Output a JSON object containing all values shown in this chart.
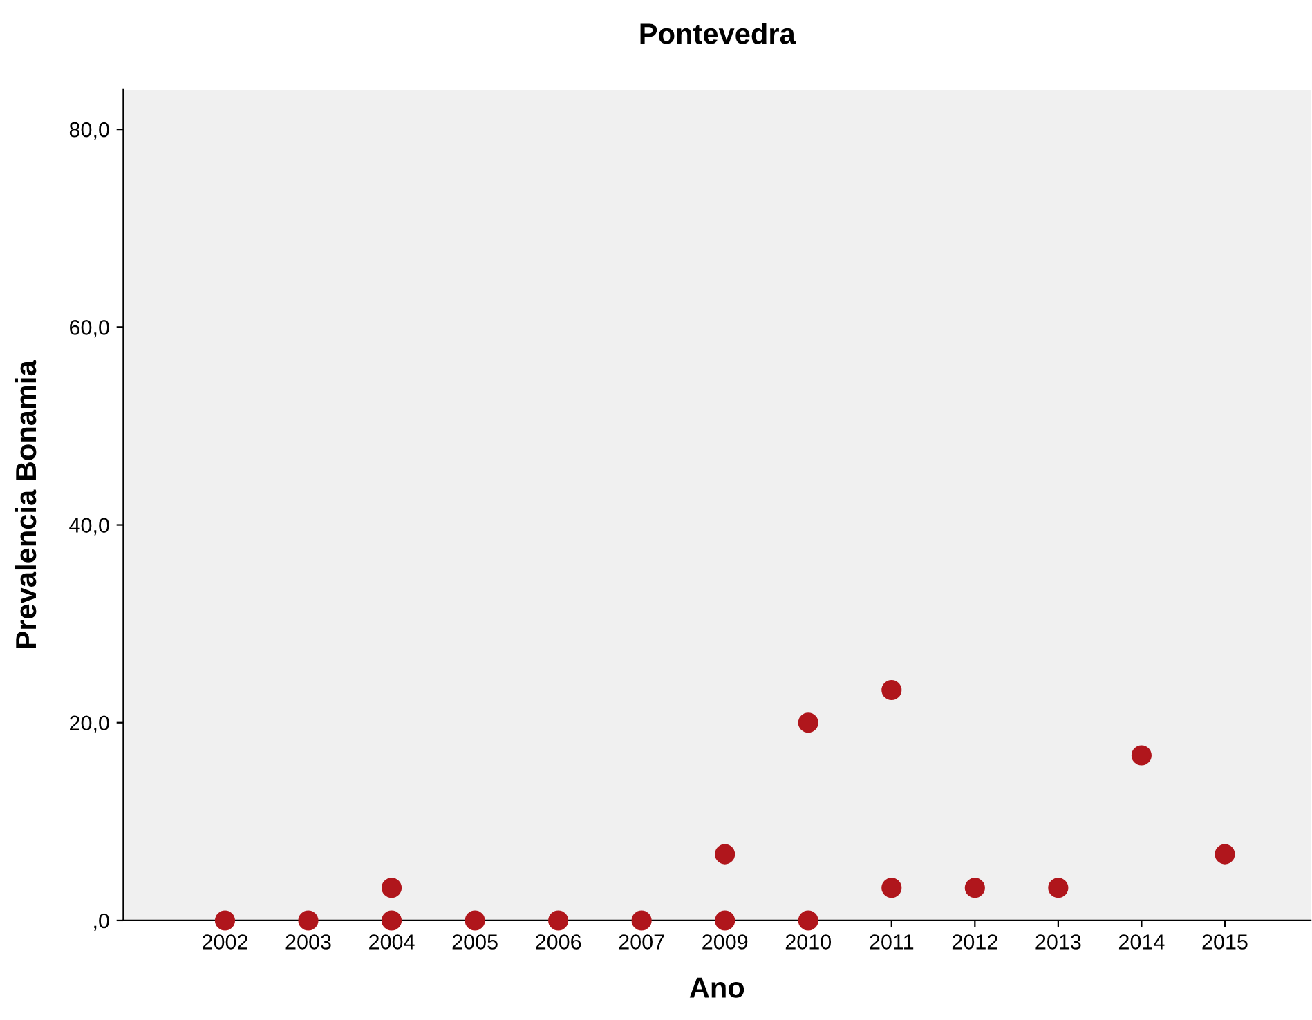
{
  "chart_data": {
    "type": "scatter",
    "title": "Pontevedra",
    "xlabel": "Ano",
    "ylabel": "Prevalencia Bonamia",
    "categories": [
      "2002",
      "2003",
      "2004",
      "2005",
      "2006",
      "2007",
      "2009",
      "2010",
      "2011",
      "2012",
      "2013",
      "2014",
      "2015"
    ],
    "series": [
      {
        "color": "#b0161c",
        "values": [
          0,
          0,
          0,
          0,
          0,
          0,
          0,
          0,
          3.3,
          3.3,
          3.3,
          16.7,
          6.7
        ]
      },
      {
        "color": "#b0161c",
        "values": [
          null,
          null,
          3.3,
          null,
          null,
          null,
          6.7,
          20.0,
          23.3,
          null,
          null,
          null,
          null
        ]
      }
    ],
    "ylim": [
      0,
      84
    ],
    "yticks": [
      {
        "value": 0,
        "label": ",0"
      },
      {
        "value": 20,
        "label": "20,0"
      },
      {
        "value": 40,
        "label": "40,0"
      },
      {
        "value": 60,
        "label": "60,0"
      },
      {
        "value": 80,
        "label": "80,0"
      }
    ],
    "grid": false,
    "legend": false,
    "marker": "circle"
  }
}
